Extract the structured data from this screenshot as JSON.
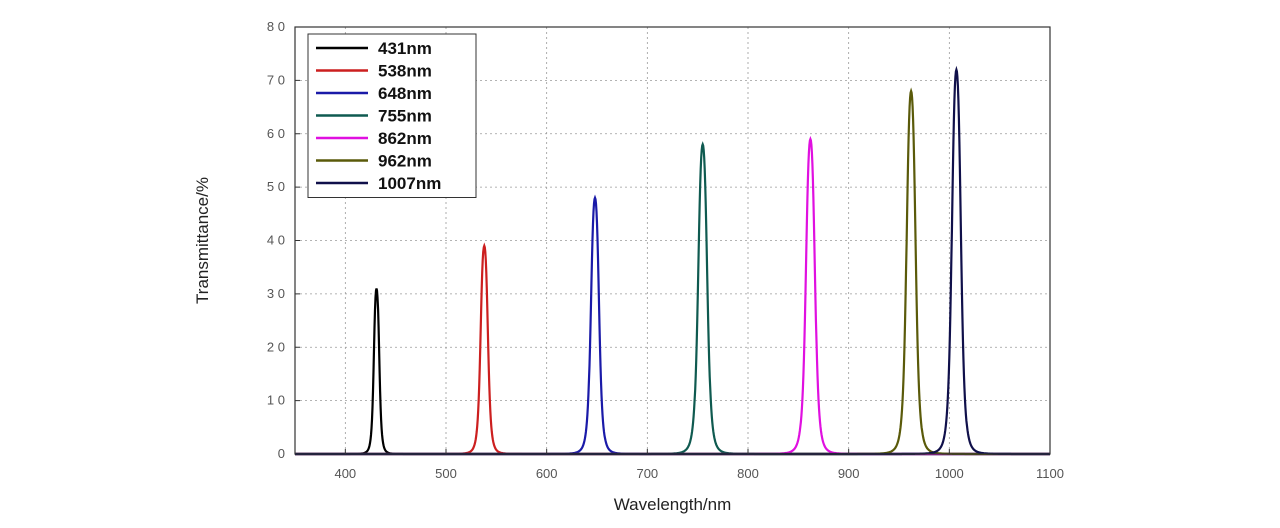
{
  "chart_data": {
    "type": "line",
    "xlabel": "Wavelength/nm",
    "ylabel": "Transmittance/%",
    "xlim": [
      350,
      1100
    ],
    "ylim": [
      0,
      80
    ],
    "x_ticks": [
      400,
      500,
      600,
      700,
      800,
      900,
      1000,
      1100
    ],
    "y_ticks": [
      0,
      10,
      20,
      30,
      40,
      50,
      60,
      70,
      80
    ],
    "x_tick_labels": [
      "400",
      "500",
      "600",
      "700",
      "800",
      "900",
      "1000",
      "1100"
    ],
    "y_tick_labels": [
      "0",
      "1 0",
      "2 0",
      "3 0",
      "4 0",
      "5 0",
      "6 0",
      "7 0",
      "8 0"
    ],
    "grid": true,
    "legend_position": "top-left",
    "series": [
      {
        "name": "431nm",
        "color": "#000000",
        "center": 431,
        "peak": 31,
        "fwhm": 6
      },
      {
        "name": "538nm",
        "color": "#cc1f1f",
        "center": 538,
        "peak": 39,
        "fwhm": 8
      },
      {
        "name": "648nm",
        "color": "#1a1aa8",
        "center": 648,
        "peak": 48,
        "fwhm": 9
      },
      {
        "name": "755nm",
        "color": "#0f5a50",
        "center": 755,
        "peak": 58,
        "fwhm": 10
      },
      {
        "name": "862nm",
        "color": "#e010e0",
        "center": 862,
        "peak": 59,
        "fwhm": 10
      },
      {
        "name": "962nm",
        "color": "#5a5a0a",
        "center": 962,
        "peak": 68,
        "fwhm": 10
      },
      {
        "name": "1007nm",
        "color": "#10104a",
        "center": 1007,
        "peak": 72,
        "fwhm": 10
      }
    ]
  }
}
